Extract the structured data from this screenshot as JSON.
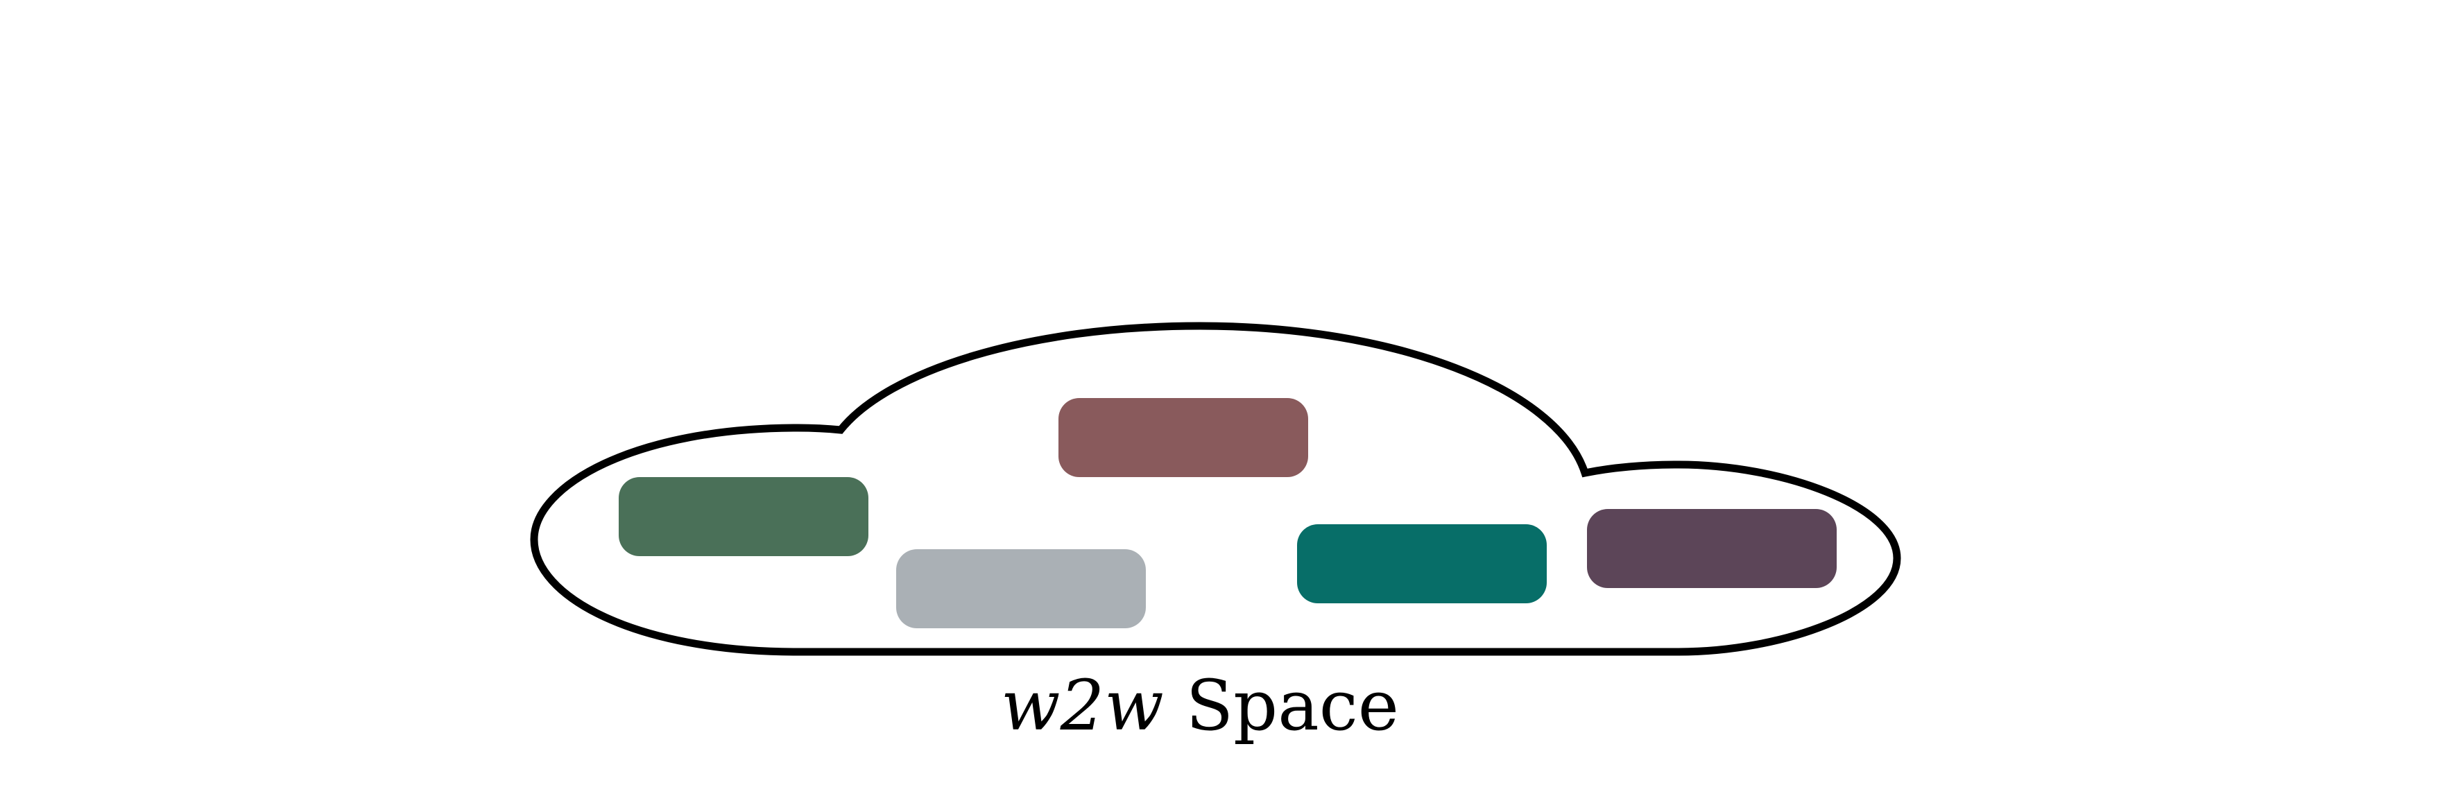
{
  "caption": {
    "italic_part": "w2w",
    "regular_part": " Space"
  },
  "colors": {
    "outline": "#000000",
    "background": "#ffffff",
    "box_1": "#4a7058",
    "box_2": "#aab0b5",
    "box_3": "#895a5c",
    "box_4": "#076e68",
    "box_5": "#5c4558"
  },
  "boxes": [
    {
      "name": "green-box",
      "color_key": "box_1"
    },
    {
      "name": "gray-box",
      "color_key": "box_2"
    },
    {
      "name": "mauve-box",
      "color_key": "box_3"
    },
    {
      "name": "teal-box",
      "color_key": "box_4"
    },
    {
      "name": "purple-box",
      "color_key": "box_5"
    }
  ]
}
